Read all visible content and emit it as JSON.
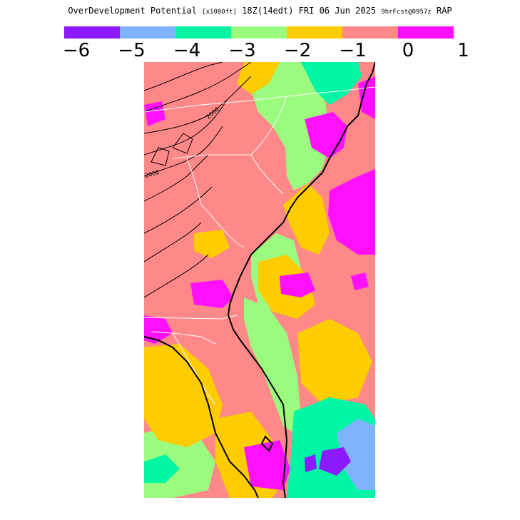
{
  "title": {
    "main": "OverDevelopment Potential",
    "units": "[x1000ft]",
    "valid": "18Z(14edt) FRI 06 Jun 2025",
    "run": "9hrFcst@0957z",
    "model": "RAP"
  },
  "legend": {
    "bins": [
      {
        "from": -6,
        "to": -5,
        "color": "#8c1aff"
      },
      {
        "from": -5,
        "to": -4,
        "color": "#7fb2ff"
      },
      {
        "from": -4,
        "to": -3,
        "color": "#00f5a5"
      },
      {
        "from": -3,
        "to": -2,
        "color": "#9bfb7f"
      },
      {
        "from": -2,
        "to": -1,
        "color": "#ffcc00"
      },
      {
        "from": -1,
        "to": 0,
        "color": "#ff8888"
      },
      {
        "from": 0,
        "to": 1,
        "color": "#ff10ff"
      }
    ],
    "tick_labels": [
      "−6",
      "−5",
      "−4",
      "−3",
      "−2",
      "−1",
      "0",
      "1"
    ]
  },
  "map": {
    "contour_labels": [
      "2000",
      "2000"
    ]
  }
}
